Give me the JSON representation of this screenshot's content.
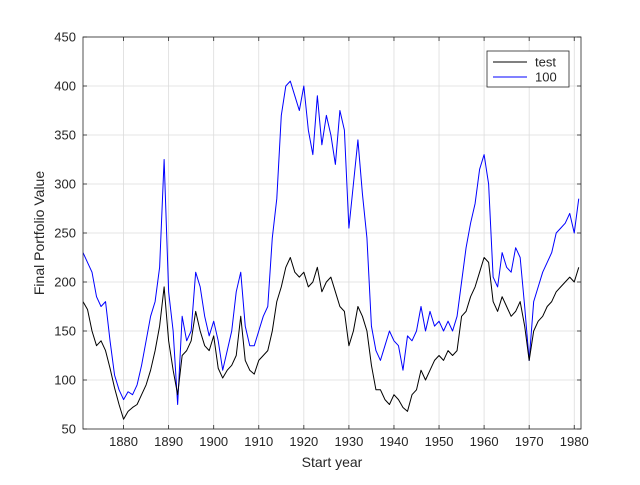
{
  "chart_data": {
    "type": "line",
    "xlabel": "Start year",
    "ylabel": "Final Portfolio Value",
    "xlim": [
      1871,
      1981.5
    ],
    "ylim": [
      50,
      450
    ],
    "xticks": [
      1880,
      1890,
      1900,
      1910,
      1920,
      1930,
      1940,
      1950,
      1960,
      1970,
      1980
    ],
    "yticks": [
      50,
      100,
      150,
      200,
      250,
      300,
      350,
      400,
      450
    ],
    "xtick_labels": [
      "1880",
      "1890",
      "1900",
      "1910",
      "1920",
      "1930",
      "1940",
      "1950",
      "1960",
      "1970",
      "1980"
    ],
    "ytick_labels": [
      "50",
      "100",
      "150",
      "200",
      "250",
      "300",
      "350",
      "400",
      "450"
    ],
    "grid": true,
    "legend_position": "top-right",
    "series": [
      {
        "name": "test",
        "color": "#000000",
        "x": [
          1871,
          1872,
          1873,
          1874,
          1875,
          1876,
          1877,
          1878,
          1879,
          1880,
          1881,
          1882,
          1883,
          1884,
          1885,
          1886,
          1887,
          1888,
          1889,
          1890,
          1891,
          1892,
          1893,
          1894,
          1895,
          1896,
          1897,
          1898,
          1899,
          1900,
          1901,
          1902,
          1903,
          1904,
          1905,
          1906,
          1907,
          1908,
          1909,
          1910,
          1911,
          1912,
          1913,
          1914,
          1915,
          1916,
          1917,
          1918,
          1919,
          1920,
          1921,
          1922,
          1923,
          1924,
          1925,
          1926,
          1927,
          1928,
          1929,
          1930,
          1931,
          1932,
          1933,
          1934,
          1935,
          1936,
          1937,
          1938,
          1939,
          1940,
          1941,
          1942,
          1943,
          1944,
          1945,
          1946,
          1947,
          1948,
          1949,
          1950,
          1951,
          1952,
          1953,
          1954,
          1955,
          1956,
          1957,
          1958,
          1959,
          1960,
          1961,
          1962,
          1963,
          1964,
          1965,
          1966,
          1967,
          1968,
          1969,
          1970,
          1971,
          1972,
          1973,
          1974,
          1975,
          1976,
          1977,
          1978,
          1979,
          1980,
          1981
        ],
        "values": [
          180,
          172,
          150,
          135,
          140,
          130,
          112,
          92,
          75,
          60,
          68,
          72,
          75,
          85,
          95,
          110,
          130,
          155,
          195,
          140,
          110,
          85,
          125,
          130,
          140,
          170,
          150,
          135,
          130,
          145,
          112,
          102,
          110,
          115,
          125,
          165,
          120,
          110,
          106,
          120,
          125,
          130,
          150,
          180,
          195,
          215,
          225,
          210,
          205,
          210,
          195,
          200,
          215,
          190,
          200,
          205,
          190,
          175,
          170,
          135,
          150,
          175,
          165,
          150,
          115,
          90,
          90,
          80,
          75,
          85,
          80,
          72,
          68,
          85,
          90,
          110,
          100,
          110,
          120,
          125,
          120,
          130,
          125,
          130,
          165,
          170,
          185,
          195,
          210,
          225,
          220,
          180,
          170,
          185,
          175,
          165,
          170,
          180,
          155,
          120,
          150,
          160,
          165,
          175,
          180,
          190,
          195,
          200,
          205,
          200,
          215
        ]
      },
      {
        "name": "100",
        "color": "#0000ff",
        "x": [
          1871,
          1872,
          1873,
          1874,
          1875,
          1876,
          1877,
          1878,
          1879,
          1880,
          1881,
          1882,
          1883,
          1884,
          1885,
          1886,
          1887,
          1888,
          1889,
          1890,
          1891,
          1892,
          1893,
          1894,
          1895,
          1896,
          1897,
          1898,
          1899,
          1900,
          1901,
          1902,
          1903,
          1904,
          1905,
          1906,
          1907,
          1908,
          1909,
          1910,
          1911,
          1912,
          1913,
          1914,
          1915,
          1916,
          1917,
          1918,
          1919,
          1920,
          1921,
          1922,
          1923,
          1924,
          1925,
          1926,
          1927,
          1928,
          1929,
          1930,
          1931,
          1932,
          1933,
          1934,
          1935,
          1936,
          1937,
          1938,
          1939,
          1940,
          1941,
          1942,
          1943,
          1944,
          1945,
          1946,
          1947,
          1948,
          1949,
          1950,
          1951,
          1952,
          1953,
          1954,
          1955,
          1956,
          1957,
          1958,
          1959,
          1960,
          1961,
          1962,
          1963,
          1964,
          1965,
          1966,
          1967,
          1968,
          1969,
          1970,
          1971,
          1972,
          1973,
          1974,
          1975,
          1976,
          1977,
          1978,
          1979,
          1980,
          1981
        ],
        "values": [
          230,
          220,
          210,
          185,
          175,
          180,
          140,
          105,
          90,
          80,
          88,
          85,
          95,
          115,
          140,
          165,
          180,
          215,
          325,
          190,
          150,
          75,
          165,
          140,
          150,
          210,
          195,
          165,
          145,
          160,
          140,
          110,
          130,
          150,
          190,
          210,
          155,
          135,
          135,
          150,
          165,
          175,
          245,
          285,
          370,
          400,
          405,
          390,
          375,
          400,
          355,
          330,
          390,
          340,
          370,
          350,
          320,
          375,
          355,
          255,
          300,
          345,
          290,
          245,
          155,
          130,
          120,
          135,
          150,
          140,
          135,
          110,
          145,
          140,
          150,
          175,
          150,
          170,
          155,
          160,
          150,
          160,
          150,
          165,
          200,
          235,
          260,
          280,
          315,
          330,
          300,
          205,
          195,
          230,
          215,
          210,
          235,
          225,
          175,
          120,
          180,
          195,
          210,
          220,
          230,
          250,
          255,
          260,
          270,
          250,
          285
        ]
      }
    ]
  }
}
